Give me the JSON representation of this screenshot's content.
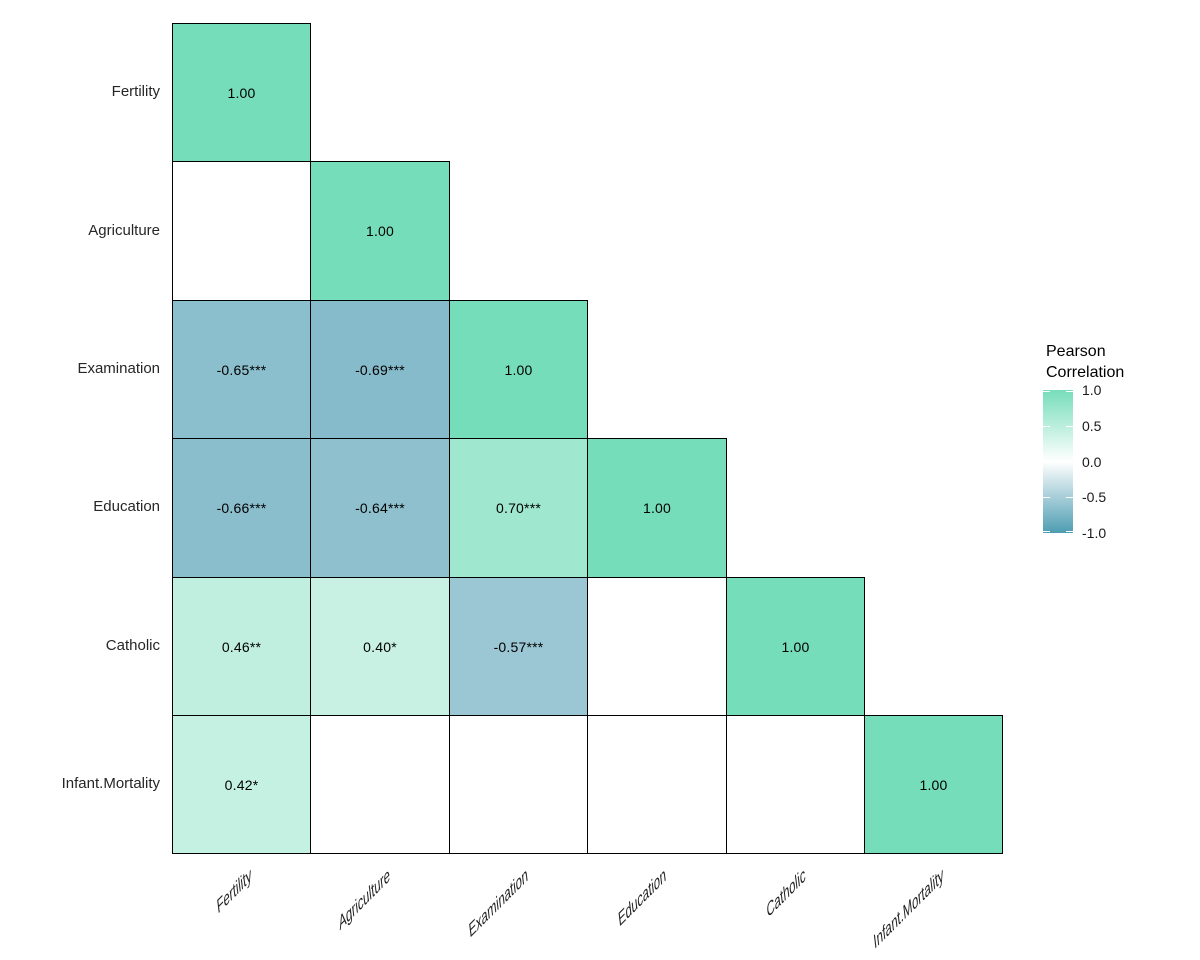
{
  "page": {
    "background": "#FFFFFF"
  },
  "chart_data": {
    "type": "heatmap",
    "subtype": "correlation-matrix-lower-triangle",
    "title": "",
    "variables": [
      "Fertility",
      "Agriculture",
      "Examination",
      "Education",
      "Catholic",
      "Infant.Mortality"
    ],
    "cells": [
      {
        "row": "Fertility",
        "col": "Fertility",
        "value": 1.0,
        "label": "1.00"
      },
      {
        "row": "Agriculture",
        "col": "Fertility",
        "value": null,
        "label": ""
      },
      {
        "row": "Agriculture",
        "col": "Agriculture",
        "value": 1.0,
        "label": "1.00"
      },
      {
        "row": "Examination",
        "col": "Fertility",
        "value": -0.65,
        "label": "-0.65***"
      },
      {
        "row": "Examination",
        "col": "Agriculture",
        "value": -0.69,
        "label": "-0.69***"
      },
      {
        "row": "Examination",
        "col": "Examination",
        "value": 1.0,
        "label": "1.00"
      },
      {
        "row": "Education",
        "col": "Fertility",
        "value": -0.66,
        "label": "-0.66***"
      },
      {
        "row": "Education",
        "col": "Agriculture",
        "value": -0.64,
        "label": "-0.64***"
      },
      {
        "row": "Education",
        "col": "Examination",
        "value": 0.7,
        "label": "0.70***"
      },
      {
        "row": "Education",
        "col": "Education",
        "value": 1.0,
        "label": "1.00"
      },
      {
        "row": "Catholic",
        "col": "Fertility",
        "value": 0.46,
        "label": "0.46**"
      },
      {
        "row": "Catholic",
        "col": "Agriculture",
        "value": 0.4,
        "label": "0.40*"
      },
      {
        "row": "Catholic",
        "col": "Examination",
        "value": -0.57,
        "label": "-0.57***"
      },
      {
        "row": "Catholic",
        "col": "Education",
        "value": null,
        "label": ""
      },
      {
        "row": "Catholic",
        "col": "Catholic",
        "value": 1.0,
        "label": "1.00"
      },
      {
        "row": "Infant.Mortality",
        "col": "Fertility",
        "value": 0.42,
        "label": "0.42*"
      },
      {
        "row": "Infant.Mortality",
        "col": "Agriculture",
        "value": null,
        "label": ""
      },
      {
        "row": "Infant.Mortality",
        "col": "Examination",
        "value": null,
        "label": ""
      },
      {
        "row": "Infant.Mortality",
        "col": "Education",
        "value": null,
        "label": ""
      },
      {
        "row": "Infant.Mortality",
        "col": "Catholic",
        "value": null,
        "label": ""
      },
      {
        "row": "Infant.Mortality",
        "col": "Infant.Mortality",
        "value": 1.0,
        "label": "1.00"
      }
    ],
    "value_range": [
      -1.0,
      1.0
    ],
    "colors": {
      "high": "#76DDBA",
      "mid": "#FFFFFF",
      "low": "#4E9DB2",
      "cell_border": "#000000",
      "cell_text": "#000000",
      "axis_text": "#262626"
    },
    "legend": {
      "position": "right",
      "title_lines": [
        "Pearson",
        "Correlation"
      ],
      "ticks": [
        {
          "label": "1.0",
          "value": 1.0
        },
        {
          "label": "0.5",
          "value": 0.5
        },
        {
          "label": "0.0",
          "value": 0.0
        },
        {
          "label": "-0.5",
          "value": -0.5
        },
        {
          "label": "-1.0",
          "value": -1.0
        }
      ]
    },
    "layout_hints": {
      "x_tick_rotation_deg": 45,
      "grid": "off",
      "blank_cells_meaning": "no label shown, white fill"
    }
  }
}
